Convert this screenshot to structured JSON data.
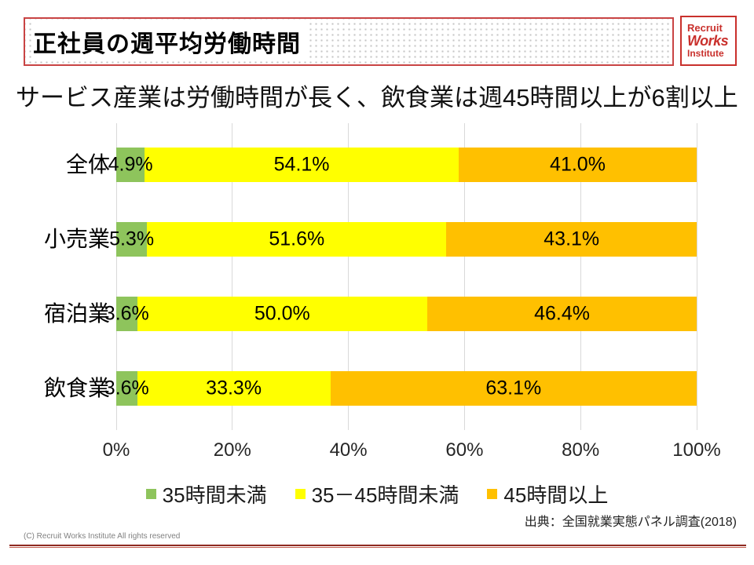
{
  "header": {
    "title": "正社員の週平均労働時間",
    "logo": {
      "line1": "Recruit",
      "line2": "Works",
      "line3": "Institute"
    }
  },
  "subtitle": "サービス産業は労働時間が長く、飲食業は週45時間以上が6割以上",
  "chart_data": {
    "type": "bar",
    "orientation": "horizontal-stacked",
    "categories": [
      "全体",
      "小売業",
      "宿泊業",
      "飲食業"
    ],
    "series": [
      {
        "name": "35時間未満",
        "color": "#8ec45c",
        "values": [
          4.9,
          5.3,
          3.6,
          3.6
        ]
      },
      {
        "name": "35－45時間未満",
        "color": "#ffff00",
        "values": [
          54.1,
          51.6,
          50.0,
          33.3
        ]
      },
      {
        "name": "45時間以上",
        "color": "#ffc000",
        "values": [
          41.0,
          43.1,
          46.4,
          63.1
        ]
      }
    ],
    "value_label_format": "percent_one_decimal",
    "x_ticks": [
      "0%",
      "20%",
      "40%",
      "60%",
      "80%",
      "100%"
    ],
    "xlim": [
      0,
      100
    ],
    "grid": true,
    "legend_position": "bottom"
  },
  "source": "出典：全国就業実態パネル調査(2018)",
  "footer": {
    "copyright": "(C) Recruit Works Institute All rights reserved"
  },
  "colors": {
    "accent_red": "#c9302c",
    "grid_line": "#d9d9d9",
    "footer_rule": "#8e2a21"
  }
}
